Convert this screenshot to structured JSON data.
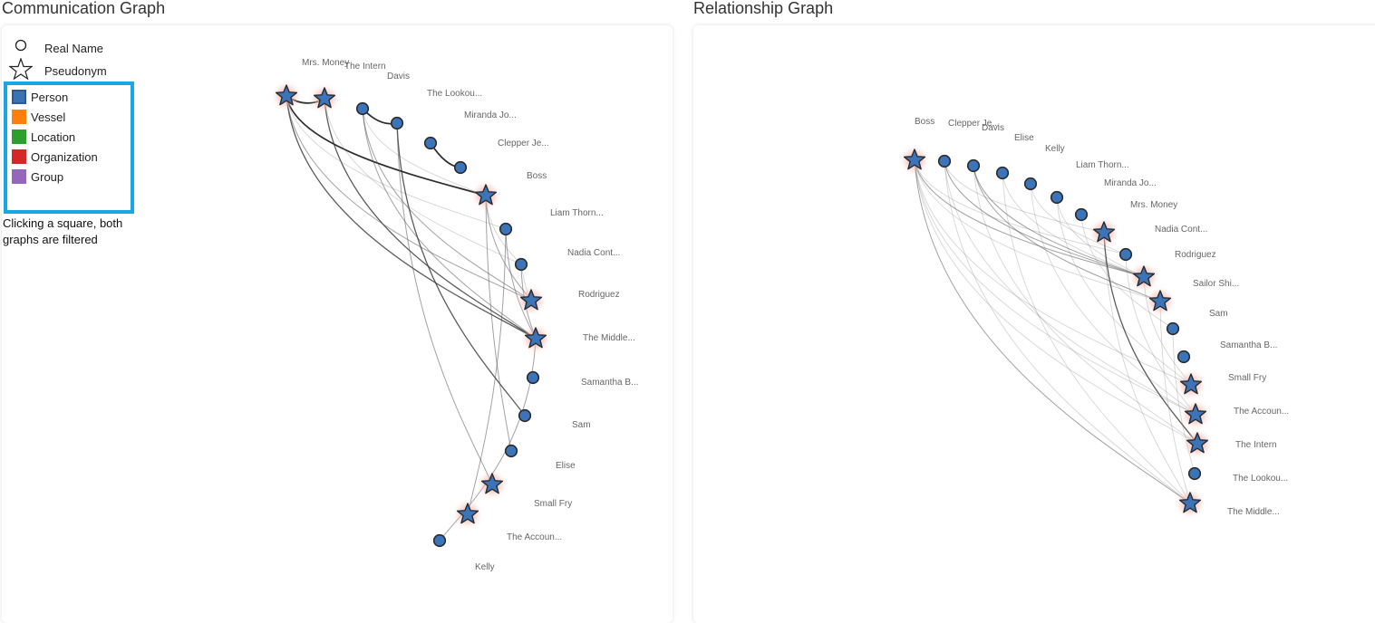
{
  "titles": {
    "communication": "Communication Graph",
    "relationship": "Relationship Graph"
  },
  "legend": {
    "shapes": [
      {
        "label": "Real Name",
        "icon": "circle-icon"
      },
      {
        "label": "Pseudonym",
        "icon": "star-icon"
      }
    ],
    "types": [
      {
        "label": "Person",
        "color": "#3a72b5"
      },
      {
        "label": "Vessel",
        "color": "#ff7f0e"
      },
      {
        "label": "Location",
        "color": "#2ca02c"
      },
      {
        "label": "Organization",
        "color": "#d62728"
      },
      {
        "label": "Group",
        "color": "#9467bd"
      }
    ],
    "hint": "Clicking a square, both graphs are filtered"
  },
  "colors": {
    "node_fill": "#3b74b8",
    "node_stroke": "#2b2b2b",
    "legend_border": "#19a6e6",
    "glow": "#f2b9b3"
  },
  "communication_graph": {
    "nodes": [
      {
        "id": "c1",
        "label": "Mrs. Money",
        "shape": "star"
      },
      {
        "id": "c2",
        "label": "The Intern",
        "shape": "star"
      },
      {
        "id": "c3",
        "label": "Davis",
        "shape": "circle"
      },
      {
        "id": "c4",
        "label": "The Lookou...",
        "shape": "circle"
      },
      {
        "id": "c5",
        "label": "Miranda Jo...",
        "shape": "circle"
      },
      {
        "id": "c6",
        "label": "Clepper Je...",
        "shape": "circle"
      },
      {
        "id": "c7",
        "label": "Boss",
        "shape": "star"
      },
      {
        "id": "c8",
        "label": "Liam Thorn...",
        "shape": "circle"
      },
      {
        "id": "c9",
        "label": "Nadia Cont...",
        "shape": "circle"
      },
      {
        "id": "c10",
        "label": "Rodriguez",
        "shape": "star"
      },
      {
        "id": "c11",
        "label": "The Middle...",
        "shape": "star"
      },
      {
        "id": "c12",
        "label": "Samantha B...",
        "shape": "circle"
      },
      {
        "id": "c13",
        "label": "Sam",
        "shape": "circle"
      },
      {
        "id": "c14",
        "label": "Elise",
        "shape": "circle"
      },
      {
        "id": "c15",
        "label": "Small Fry",
        "shape": "star"
      },
      {
        "id": "c16",
        "label": "The Accoun...",
        "shape": "star"
      },
      {
        "id": "c17",
        "label": "Kelly",
        "shape": "circle"
      }
    ],
    "links": [
      {
        "source": "c1",
        "target": "c2",
        "weight": 3
      },
      {
        "source": "c3",
        "target": "c4",
        "weight": 3
      },
      {
        "source": "c5",
        "target": "c6",
        "weight": 3
      },
      {
        "source": "c1",
        "target": "c7",
        "weight": 3
      },
      {
        "source": "c1",
        "target": "c11",
        "weight": 2
      },
      {
        "source": "c2",
        "target": "c11",
        "weight": 2
      },
      {
        "source": "c1",
        "target": "c10",
        "weight": 1
      },
      {
        "source": "c1",
        "target": "c8",
        "weight": 0
      },
      {
        "source": "c3",
        "target": "c11",
        "weight": 1
      },
      {
        "source": "c3",
        "target": "c7",
        "weight": 0
      },
      {
        "source": "c3",
        "target": "c10",
        "weight": 1
      },
      {
        "source": "c4",
        "target": "c13",
        "weight": 2
      },
      {
        "source": "c4",
        "target": "c15",
        "weight": 1
      },
      {
        "source": "c7",
        "target": "c10",
        "weight": 1
      },
      {
        "source": "c7",
        "target": "c14",
        "weight": 1
      },
      {
        "source": "c7",
        "target": "c9",
        "weight": 0
      },
      {
        "source": "c8",
        "target": "c16",
        "weight": 1
      },
      {
        "source": "c8",
        "target": "c11",
        "weight": 1
      },
      {
        "source": "c9",
        "target": "c11",
        "weight": 1
      },
      {
        "source": "c9",
        "target": "c10",
        "weight": 0
      },
      {
        "source": "c11",
        "target": "c17",
        "weight": 1
      },
      {
        "source": "c2",
        "target": "c9",
        "weight": 0
      }
    ]
  },
  "relationship_graph": {
    "nodes": [
      {
        "id": "r1",
        "label": "Boss",
        "shape": "star"
      },
      {
        "id": "r2",
        "label": "Clepper Je...",
        "shape": "circle"
      },
      {
        "id": "r3",
        "label": "Davis",
        "shape": "circle"
      },
      {
        "id": "r4",
        "label": "Elise",
        "shape": "circle"
      },
      {
        "id": "r5",
        "label": "Kelly",
        "shape": "circle"
      },
      {
        "id": "r6",
        "label": "Liam Thorn...",
        "shape": "circle"
      },
      {
        "id": "r7",
        "label": "Miranda Jo...",
        "shape": "circle"
      },
      {
        "id": "r8",
        "label": "Mrs. Money",
        "shape": "star"
      },
      {
        "id": "r9",
        "label": "Nadia Cont...",
        "shape": "circle"
      },
      {
        "id": "r10",
        "label": "Rodriguez",
        "shape": "star"
      },
      {
        "id": "r11",
        "label": "Sailor Shi...",
        "shape": "star"
      },
      {
        "id": "r12",
        "label": "Sam",
        "shape": "circle"
      },
      {
        "id": "r13",
        "label": "Samantha B...",
        "shape": "circle"
      },
      {
        "id": "r14",
        "label": "Small Fry",
        "shape": "star"
      },
      {
        "id": "r15",
        "label": "The Accoun...",
        "shape": "star"
      },
      {
        "id": "r16",
        "label": "The Intern",
        "shape": "star"
      },
      {
        "id": "r17",
        "label": "The Lookou...",
        "shape": "circle"
      },
      {
        "id": "r18",
        "label": "The Middle...",
        "shape": "star"
      }
    ],
    "links": [
      {
        "source": "r1",
        "target": "r10",
        "weight": 1
      },
      {
        "source": "r1",
        "target": "r11",
        "weight": 0
      },
      {
        "source": "r1",
        "target": "r14",
        "weight": 0
      },
      {
        "source": "r1",
        "target": "r15",
        "weight": 0
      },
      {
        "source": "r1",
        "target": "r16",
        "weight": 0
      },
      {
        "source": "r1",
        "target": "r18",
        "weight": 1
      },
      {
        "source": "r1",
        "target": "r9",
        "weight": 0
      },
      {
        "source": "r2",
        "target": "r10",
        "weight": 1
      },
      {
        "source": "r2",
        "target": "r8",
        "weight": 0
      },
      {
        "source": "r2",
        "target": "r15",
        "weight": 0
      },
      {
        "source": "r2",
        "target": "r18",
        "weight": 0
      },
      {
        "source": "r3",
        "target": "r10",
        "weight": 1
      },
      {
        "source": "r3",
        "target": "r11",
        "weight": 1
      },
      {
        "source": "r3",
        "target": "r16",
        "weight": 0
      },
      {
        "source": "r4",
        "target": "r10",
        "weight": 0
      },
      {
        "source": "r4",
        "target": "r18",
        "weight": 0
      },
      {
        "source": "r5",
        "target": "r9",
        "weight": 0
      },
      {
        "source": "r5",
        "target": "r15",
        "weight": 0
      },
      {
        "source": "r6",
        "target": "r10",
        "weight": 0
      },
      {
        "source": "r6",
        "target": "r14",
        "weight": 0
      },
      {
        "source": "r7",
        "target": "r12",
        "weight": 0
      },
      {
        "source": "r8",
        "target": "r16",
        "weight": 2
      },
      {
        "source": "r8",
        "target": "r18",
        "weight": 0
      },
      {
        "source": "r9",
        "target": "r15",
        "weight": 0
      },
      {
        "source": "r10",
        "target": "r14",
        "weight": 0
      },
      {
        "source": "r11",
        "target": "r18",
        "weight": 0
      },
      {
        "source": "r12",
        "target": "r17",
        "weight": 0
      }
    ]
  }
}
